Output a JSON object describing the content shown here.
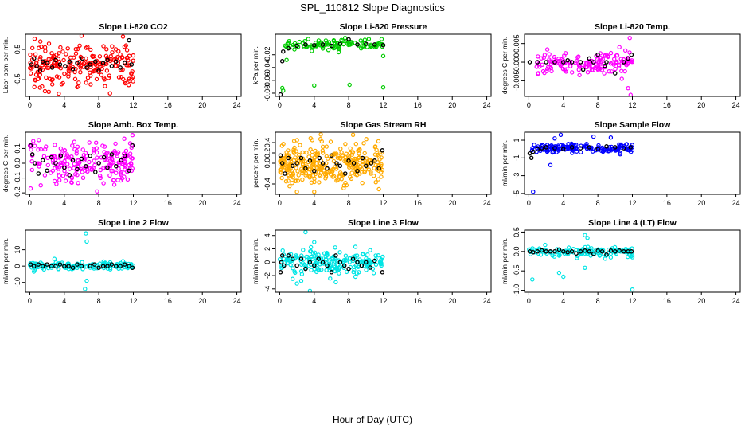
{
  "figure": {
    "title": "SPL_110812  Slope Diagnostics",
    "xlabel": "Hour of Day (UTC)"
  },
  "chart_data": [
    {
      "type": "scatter",
      "title": "Slope Li-820 CO2",
      "ylabel": "Licor ppm per min.",
      "xlim": [
        -0.5,
        24.5
      ],
      "xticks": [
        0,
        4,
        8,
        12,
        16,
        20,
        24
      ],
      "ylim": [
        -1.05,
        1.0
      ],
      "yticks": [
        -0.5,
        0.5
      ],
      "ytick_labels": [
        "-0.5",
        "0.5"
      ],
      "color": "#ff0000",
      "count": 220,
      "x_range": [
        0,
        12
      ],
      "center": 0.0,
      "spread": 0.35,
      "outliers": [
        [
          2.2,
          -0.9
        ],
        [
          6.0,
          0.95
        ],
        [
          9.3,
          -0.95
        ],
        [
          10.8,
          0.92
        ]
      ],
      "black_points": [
        [
          0.2,
          0.0
        ],
        [
          0.5,
          0.2
        ],
        [
          0.8,
          -0.05
        ],
        [
          1.2,
          -0.2
        ],
        [
          1.5,
          0.1
        ],
        [
          2.0,
          0.05
        ],
        [
          2.6,
          -0.1
        ],
        [
          3.0,
          0.15
        ],
        [
          3.5,
          0.0
        ],
        [
          4.1,
          -0.05
        ],
        [
          4.6,
          0.1
        ],
        [
          5.0,
          -0.15
        ],
        [
          5.5,
          0.05
        ],
        [
          6.1,
          0.2
        ],
        [
          6.6,
          -0.1
        ],
        [
          7.0,
          0.0
        ],
        [
          7.6,
          0.1
        ],
        [
          8.0,
          -0.2
        ],
        [
          8.5,
          0.05
        ],
        [
          9.0,
          0.15
        ],
        [
          9.5,
          -0.05
        ],
        [
          10.0,
          0.1
        ],
        [
          10.5,
          -0.1
        ],
        [
          11.0,
          0.05
        ],
        [
          11.5,
          0.8
        ],
        [
          11.8,
          0.0
        ]
      ]
    },
    {
      "type": "scatter",
      "title": "Slope Li-820 Pressure",
      "ylabel": "kPa per min.",
      "xlim": [
        -0.5,
        24.5
      ],
      "xticks": [
        0,
        4,
        8,
        12,
        16,
        20,
        24
      ],
      "ylim": [
        -0.085,
        0.012
      ],
      "yticks": [
        -0.08,
        -0.06,
        -0.04,
        -0.02
      ],
      "ytick_labels": [
        "-0.08",
        "-0.06",
        "-0.04",
        "-0.02"
      ],
      "color": "#00cc00",
      "count": 110,
      "x_range": [
        0.5,
        12
      ],
      "center": -0.004,
      "spread": 0.004,
      "outliers": [
        [
          0.3,
          -0.072
        ],
        [
          0.4,
          -0.076
        ],
        [
          4.0,
          -0.068
        ],
        [
          8.1,
          -0.067
        ],
        [
          12.0,
          -0.071
        ],
        [
          12.0,
          -0.022
        ],
        [
          0.8,
          -0.028
        ]
      ],
      "black_points": [
        [
          0.1,
          -0.082
        ],
        [
          0.3,
          -0.03
        ],
        [
          0.4,
          -0.015
        ],
        [
          1.0,
          -0.01
        ],
        [
          2.0,
          -0.006
        ],
        [
          3.0,
          -0.004
        ],
        [
          4.0,
          -0.005
        ],
        [
          5.0,
          -0.004
        ],
        [
          6.0,
          -0.006
        ],
        [
          7.0,
          -0.003
        ],
        [
          8.0,
          0.004
        ],
        [
          9.0,
          -0.004
        ],
        [
          10.0,
          -0.003
        ],
        [
          11.0,
          -0.004
        ],
        [
          12.0,
          -0.005
        ]
      ]
    },
    {
      "type": "scatter",
      "title": "Slope Li-820 Temp.",
      "ylabel": "degrees C per min.",
      "xlim": [
        -0.5,
        24.5
      ],
      "xticks": [
        0,
        4,
        8,
        12,
        16,
        20,
        24
      ],
      "ylim": [
        -0.0092,
        0.0075
      ],
      "yticks": [
        -0.005,
        0.0,
        0.005
      ],
      "ytick_labels": [
        "-0.005",
        "0.000",
        "0.005"
      ],
      "color": "#ff00ff",
      "count": 150,
      "x_range": [
        0.5,
        12
      ],
      "center": -0.0002,
      "spread": 0.0015,
      "outliers": [
        [
          11.7,
          0.0065
        ],
        [
          11.8,
          -0.0088
        ],
        [
          11.5,
          -0.007
        ],
        [
          10.5,
          0.004
        ]
      ],
      "black_points": [
        [
          0.1,
          0.0
        ],
        [
          1.0,
          0.0
        ],
        [
          2.0,
          0.0
        ],
        [
          3.0,
          0.0
        ],
        [
          4.0,
          0.0
        ],
        [
          4.5,
          0.0005
        ],
        [
          5.0,
          0.0
        ],
        [
          6.0,
          0.0
        ],
        [
          6.3,
          -0.002
        ],
        [
          7.0,
          0.001
        ],
        [
          7.5,
          0.0
        ],
        [
          8.0,
          0.002
        ],
        [
          8.8,
          -0.001
        ],
        [
          9.0,
          0.0
        ],
        [
          10.0,
          -0.003
        ],
        [
          11.0,
          0.0
        ],
        [
          11.5,
          0.001
        ],
        [
          11.9,
          0.002
        ]
      ]
    },
    {
      "type": "scatter",
      "title": "Slope Amb. Box Temp.",
      "ylabel": "degrees C per min.",
      "xlim": [
        -0.5,
        24.5
      ],
      "xticks": [
        0,
        4,
        8,
        12,
        16,
        20,
        24
      ],
      "ylim": [
        -0.21,
        0.21
      ],
      "yticks": [
        -0.2,
        -0.1,
        0.0,
        0.1
      ],
      "ytick_labels": [
        "-0.2",
        "-0.1",
        "0.0",
        "0.1"
      ],
      "color": "#ff00ff",
      "count": 200,
      "x_range": [
        0,
        12
      ],
      "center": 0.0,
      "spread": 0.07,
      "outliers": [
        [
          11.9,
          0.19
        ],
        [
          0.1,
          -0.17
        ],
        [
          0.4,
          0.15
        ],
        [
          7.8,
          -0.19
        ]
      ],
      "black_points": [
        [
          0.1,
          0.12
        ],
        [
          0.3,
          0.06
        ],
        [
          0.6,
          0.0
        ],
        [
          1.0,
          -0.07
        ],
        [
          1.5,
          0.02
        ],
        [
          2.0,
          -0.05
        ],
        [
          2.5,
          0.04
        ],
        [
          3.0,
          0.0
        ],
        [
          3.6,
          0.05
        ],
        [
          4.0,
          -0.03
        ],
        [
          4.6,
          -0.08
        ],
        [
          5.0,
          0.02
        ],
        [
          5.5,
          -0.04
        ],
        [
          6.0,
          0.03
        ],
        [
          6.5,
          -0.02
        ],
        [
          7.0,
          0.05
        ],
        [
          7.6,
          -0.06
        ],
        [
          8.0,
          0.0
        ],
        [
          8.6,
          0.04
        ],
        [
          9.0,
          -0.03
        ],
        [
          9.5,
          0.06
        ],
        [
          10.0,
          -0.02
        ],
        [
          10.6,
          0.02
        ],
        [
          11.0,
          0.05
        ],
        [
          11.5,
          -0.05
        ],
        [
          11.9,
          0.12
        ]
      ]
    },
    {
      "type": "scatter",
      "title": "Slope Gas Stream RH",
      "ylabel": "percent per min.",
      "xlim": [
        -0.5,
        24.5
      ],
      "xticks": [
        0,
        4,
        8,
        12,
        16,
        20,
        24
      ],
      "ylim": [
        -0.6,
        0.6
      ],
      "yticks": [
        -0.4,
        0.0,
        0.2,
        0.4
      ],
      "ytick_labels": [
        "-0.4",
        "0.0",
        "0.2",
        "0.4"
      ],
      "color": "#ffaa00",
      "count": 330,
      "x_range": [
        0,
        12
      ],
      "center": 0.0,
      "spread": 0.2,
      "outliers": [
        [
          2.0,
          -0.55
        ],
        [
          4.0,
          -0.55
        ],
        [
          8.5,
          0.55
        ],
        [
          11.5,
          -0.5
        ]
      ],
      "black_points": [
        [
          0.1,
          0.15
        ],
        [
          0.3,
          0.0
        ],
        [
          0.6,
          -0.2
        ],
        [
          1.0,
          0.1
        ],
        [
          1.5,
          -0.05
        ],
        [
          2.0,
          0.0
        ],
        [
          2.5,
          0.1
        ],
        [
          3.0,
          -0.1
        ],
        [
          3.5,
          0.05
        ],
        [
          4.0,
          -0.15
        ],
        [
          4.6,
          0.1
        ],
        [
          5.0,
          0.0
        ],
        [
          5.5,
          -0.1
        ],
        [
          6.0,
          0.15
        ],
        [
          6.6,
          0.0
        ],
        [
          7.0,
          -0.05
        ],
        [
          7.6,
          -0.2
        ],
        [
          8.0,
          0.05
        ],
        [
          8.6,
          0.0
        ],
        [
          9.0,
          -0.15
        ],
        [
          9.6,
          0.1
        ],
        [
          10.0,
          -0.05
        ],
        [
          10.6,
          0.0
        ],
        [
          11.0,
          0.05
        ],
        [
          11.5,
          -0.1
        ],
        [
          11.9,
          0.25
        ]
      ]
    },
    {
      "type": "scatter",
      "title": "Slope Sample Flow",
      "ylabel": "ml/min per min.",
      "xlim": [
        -0.5,
        24.5
      ],
      "xticks": [
        0,
        4,
        8,
        12,
        16,
        20,
        24
      ],
      "ylim": [
        -5.1,
        1.9
      ],
      "yticks": [
        -5,
        -3,
        -1,
        1
      ],
      "ytick_labels": [
        "-5",
        "-3",
        "-1",
        "1"
      ],
      "color": "#0000ff",
      "count": 160,
      "x_range": [
        0.3,
        12
      ],
      "center": 0.1,
      "spread": 0.25,
      "outliers": [
        [
          0.5,
          -4.8
        ],
        [
          2.5,
          -1.8
        ],
        [
          3.7,
          1.6
        ],
        [
          3.0,
          1.2
        ],
        [
          7.5,
          1.4
        ],
        [
          9.5,
          1.3
        ]
      ],
      "black_points": [
        [
          0.1,
          -0.5
        ],
        [
          0.3,
          -1.0
        ],
        [
          0.5,
          -0.3
        ],
        [
          1.0,
          0.0
        ],
        [
          1.5,
          0.1
        ],
        [
          2.0,
          0.2
        ],
        [
          3.0,
          0.1
        ],
        [
          4.0,
          0.0
        ],
        [
          5.0,
          0.2
        ],
        [
          6.0,
          0.1
        ],
        [
          7.0,
          0.2
        ],
        [
          8.0,
          0.0
        ],
        [
          9.0,
          0.3
        ],
        [
          10.0,
          0.2
        ],
        [
          11.0,
          0.1
        ],
        [
          11.8,
          0.2
        ]
      ]
    },
    {
      "type": "scatter",
      "title": "Slope Line 2 Flow",
      "ylabel": "ml/min per min.",
      "xlim": [
        -0.5,
        24.5
      ],
      "xticks": [
        0,
        4,
        8,
        12,
        16,
        20,
        24
      ],
      "ylim": [
        -16,
        22
      ],
      "yticks": [
        -10,
        0,
        10
      ],
      "ytick_labels": [
        "-10",
        "0",
        "10"
      ],
      "color": "#00e5e5",
      "count": 130,
      "x_range": [
        0,
        12
      ],
      "center": 0.0,
      "spread": 1.2,
      "outliers": [
        [
          6.5,
          20
        ],
        [
          6.4,
          -14
        ],
        [
          6.6,
          -9
        ],
        [
          6.6,
          15
        ]
      ],
      "black_points": [
        [
          0.1,
          1
        ],
        [
          0.5,
          0
        ],
        [
          1.0,
          1
        ],
        [
          1.5,
          0
        ],
        [
          2.0,
          1
        ],
        [
          2.5,
          0
        ],
        [
          3.0,
          0
        ],
        [
          3.5,
          1
        ],
        [
          4.0,
          0
        ],
        [
          4.5,
          0
        ],
        [
          5.0,
          -1
        ],
        [
          5.5,
          1
        ],
        [
          6.0,
          0
        ],
        [
          7.0,
          0
        ],
        [
          7.5,
          1
        ],
        [
          8.0,
          -1
        ],
        [
          8.5,
          0
        ],
        [
          9.0,
          0
        ],
        [
          9.5,
          1
        ],
        [
          10.0,
          0
        ],
        [
          10.5,
          0
        ],
        [
          11.0,
          1
        ],
        [
          11.5,
          0
        ],
        [
          11.9,
          -1
        ]
      ]
    },
    {
      "type": "scatter",
      "title": "Slope Line 3 Flow",
      "ylabel": "ml/min per min.",
      "xlim": [
        -0.5,
        24.5
      ],
      "xticks": [
        0,
        4,
        8,
        12,
        16,
        20,
        24
      ],
      "ylim": [
        -4.5,
        4.8
      ],
      "yticks": [
        -4,
        -2,
        0,
        2,
        4
      ],
      "ytick_labels": [
        "-4",
        "-2",
        "0",
        "2",
        "4"
      ],
      "color": "#00e5e5",
      "count": 200,
      "x_range": [
        0,
        12
      ],
      "center": 0.0,
      "spread": 0.8,
      "outliers": [
        [
          3.0,
          4.5
        ],
        [
          2.0,
          -3.2
        ],
        [
          3.5,
          -4.3
        ],
        [
          2.5,
          -2.8
        ],
        [
          1.5,
          -2.5
        ],
        [
          6.5,
          -3.0
        ],
        [
          4.0,
          3.0
        ]
      ],
      "black_points": [
        [
          0.1,
          -1.5
        ],
        [
          0.2,
          0.0
        ],
        [
          0.3,
          1.0
        ],
        [
          0.5,
          -0.5
        ],
        [
          1.0,
          1.0
        ],
        [
          1.5,
          0.5
        ],
        [
          2.0,
          -0.5
        ],
        [
          2.5,
          0.5
        ],
        [
          3.0,
          -1.0
        ],
        [
          3.5,
          0.0
        ],
        [
          4.0,
          -0.5
        ],
        [
          4.5,
          0.5
        ],
        [
          5.0,
          0.0
        ],
        [
          5.5,
          -0.5
        ],
        [
          6.0,
          -1.5
        ],
        [
          6.5,
          1.0
        ],
        [
          7.0,
          0.0
        ],
        [
          7.5,
          -0.5
        ],
        [
          8.0,
          -1.0
        ],
        [
          8.5,
          0.5
        ],
        [
          9.0,
          0.0
        ],
        [
          9.5,
          -0.5
        ],
        [
          10.0,
          0.0
        ],
        [
          10.5,
          -0.8
        ],
        [
          11.0,
          0.2
        ],
        [
          11.9,
          -1.5
        ]
      ]
    },
    {
      "type": "scatter",
      "title": "Slope Line 4 (LT) Flow",
      "ylabel": "ml/min per min.",
      "xlim": [
        -0.5,
        24.5
      ],
      "xticks": [
        0,
        4,
        8,
        12,
        16,
        20,
        24
      ],
      "ylim": [
        -1.05,
        0.55
      ],
      "yticks": [
        -1.0,
        -0.5,
        0.0,
        0.5
      ],
      "ytick_labels": [
        "-1.0",
        "-0.5",
        "0.0",
        "0.5"
      ],
      "color": "#00e5e5",
      "count": 130,
      "x_range": [
        0,
        12
      ],
      "center": 0.0,
      "spread": 0.06,
      "outliers": [
        [
          0.4,
          -0.72
        ],
        [
          3.5,
          -0.55
        ],
        [
          4.0,
          -0.65
        ],
        [
          6.5,
          0.42
        ],
        [
          6.8,
          0.35
        ],
        [
          12.0,
          -0.98
        ],
        [
          6.5,
          -0.42
        ],
        [
          12.0,
          -0.15
        ]
      ],
      "black_points": [
        [
          0.1,
          0.0
        ],
        [
          0.5,
          -0.02
        ],
        [
          1.0,
          0.0
        ],
        [
          1.5,
          0.03
        ],
        [
          2.0,
          0.0
        ],
        [
          2.5,
          0.0
        ],
        [
          3.0,
          0.0
        ],
        [
          3.5,
          0.05
        ],
        [
          4.0,
          0.0
        ],
        [
          4.5,
          -0.02
        ],
        [
          5.0,
          0.0
        ],
        [
          5.5,
          -0.05
        ],
        [
          6.0,
          0.0
        ],
        [
          6.5,
          0.02
        ],
        [
          7.0,
          0.0
        ],
        [
          7.5,
          -0.06
        ],
        [
          8.0,
          0.02
        ],
        [
          8.5,
          0.0
        ],
        [
          9.0,
          -0.08
        ],
        [
          9.5,
          0.02
        ],
        [
          10.0,
          0.0
        ],
        [
          10.5,
          0.02
        ],
        [
          11.0,
          0.0
        ],
        [
          11.5,
          0.0
        ],
        [
          11.9,
          0.0
        ]
      ]
    }
  ]
}
